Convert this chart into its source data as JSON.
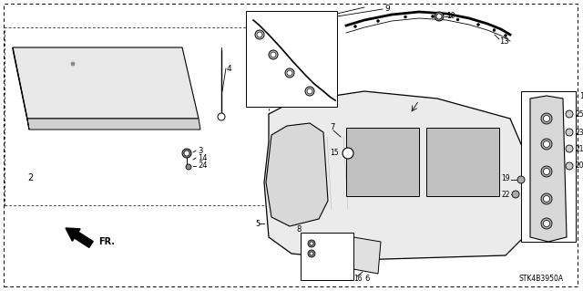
{
  "bg_color": "#ffffff",
  "part_code": "STK4B3950A",
  "fig_w": 6.4,
  "fig_h": 3.19,
  "dpi": 100,
  "xmin": 0,
  "xmax": 640,
  "ymin": 0,
  "ymax": 319
}
